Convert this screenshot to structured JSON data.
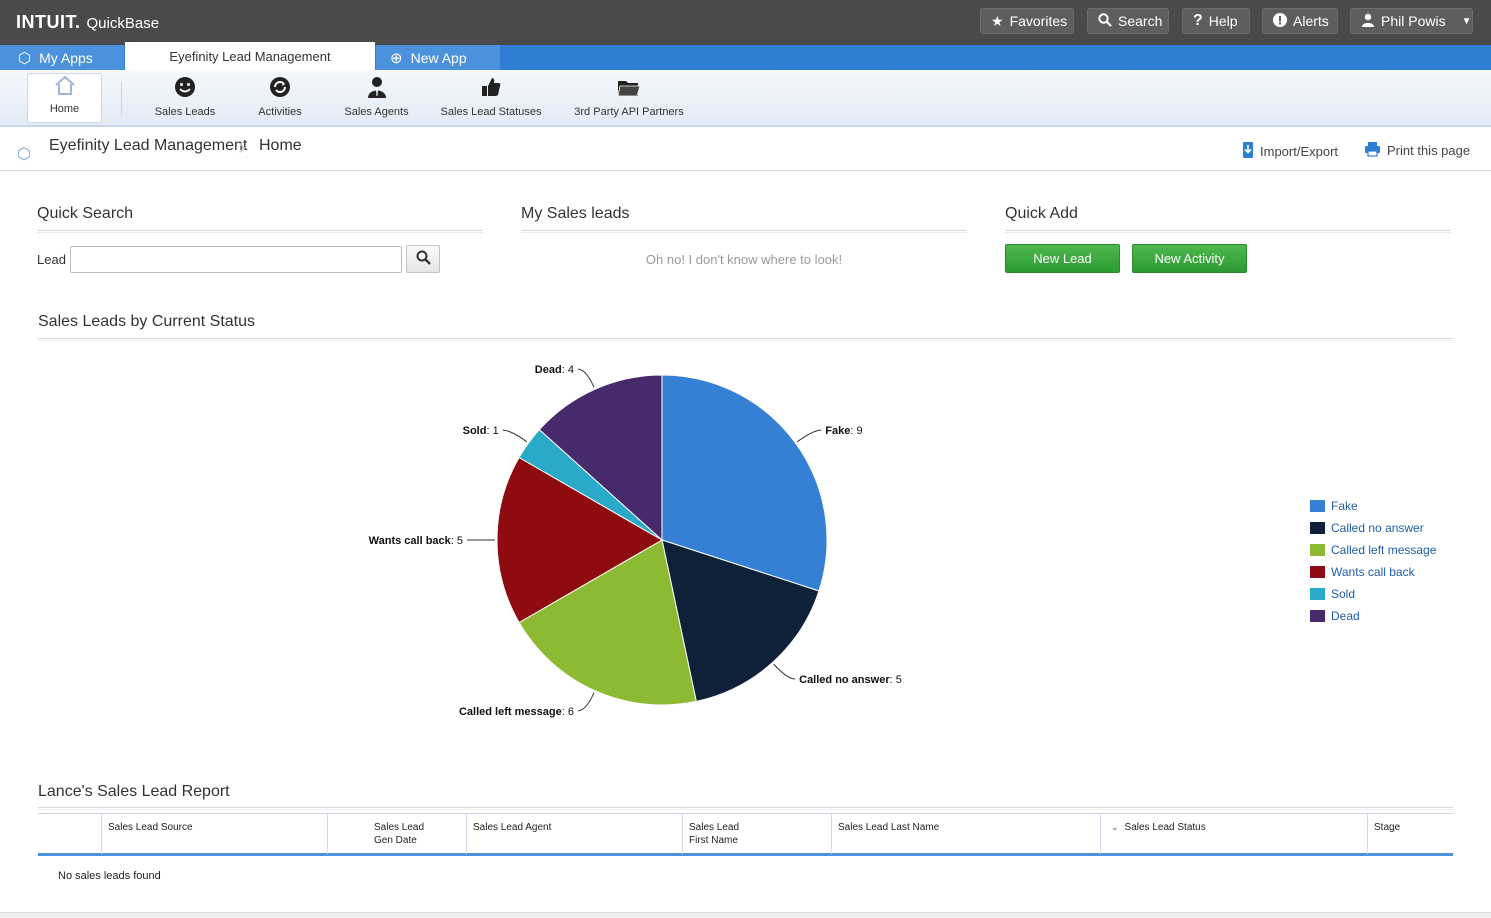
{
  "header": {
    "logo_brand": "INTUIT.",
    "logo_product": "QuickBase",
    "buttons": {
      "favorites": "Favorites",
      "search": "Search",
      "help": "Help",
      "alerts": "Alerts",
      "user": "Phil Powis"
    }
  },
  "app_tabs": {
    "my_apps": "My Apps",
    "active": "Eyefinity Lead Management",
    "new_app": "New App"
  },
  "nav": {
    "items": [
      {
        "label": "Home",
        "icon": "home-icon"
      },
      {
        "label": "Sales Leads",
        "icon": "smiley-icon"
      },
      {
        "label": "Activities",
        "icon": "refresh-icon"
      },
      {
        "label": "Sales Agents",
        "icon": "agent-icon"
      },
      {
        "label": "Sales Lead Statuses",
        "icon": "thumbs-up-icon"
      },
      {
        "label": "3rd Party API Partners",
        "icon": "folder-icon"
      }
    ]
  },
  "breadcrumb": {
    "app": "Eyefinity Lead Management",
    "page": "Home",
    "import_export": "Import/Export",
    "print": "Print this page"
  },
  "quick_search": {
    "title": "Quick Search",
    "label": "Lead",
    "value": "",
    "placeholder": ""
  },
  "my_sales_leads": {
    "title": "My Sales leads",
    "message": "Oh no! I don't know where to look!"
  },
  "quick_add": {
    "title": "Quick Add",
    "new_lead": "New Lead",
    "new_activity": "New Activity"
  },
  "chart_section": {
    "title": "Sales Leads by Current Status"
  },
  "chart_data": {
    "type": "pie",
    "title": "Sales Leads by Current Status",
    "legend_position": "right",
    "slices": [
      {
        "label": "Fake",
        "value": 9,
        "color": "#3580d4"
      },
      {
        "label": "Called no answer",
        "value": 5,
        "color": "#0f2138"
      },
      {
        "label": "Called left message",
        "value": 6,
        "color": "#8cba33"
      },
      {
        "label": "Wants call back",
        "value": 5,
        "color": "#8e0b10"
      },
      {
        "label": "Sold",
        "value": 1,
        "color": "#2aa9c9"
      },
      {
        "label": "Dead",
        "value": 4,
        "color": "#472a6b"
      }
    ]
  },
  "report": {
    "title": "Lance's Sales Lead Report",
    "columns": [
      {
        "line1": "",
        "line2": ""
      },
      {
        "line1": "Sales Lead Source",
        "line2": ""
      },
      {
        "line1": "Sales Lead",
        "line2": "Gen Date"
      },
      {
        "line1": "Sales Lead Agent",
        "line2": ""
      },
      {
        "line1": "Sales Lead",
        "line2": "First Name"
      },
      {
        "line1": "Sales Lead Last Name",
        "line2": ""
      },
      {
        "line1": "Sales Lead Status",
        "line2": ""
      },
      {
        "line1": "Stage",
        "line2": ""
      }
    ],
    "empty_message": "No sales leads found"
  }
}
